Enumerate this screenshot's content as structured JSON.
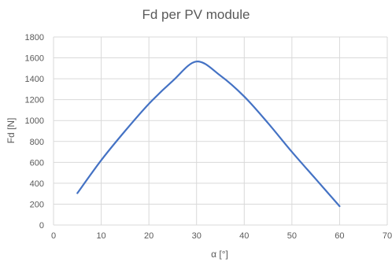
{
  "chart_data": {
    "type": "line",
    "title": "Fd per PV module",
    "xlabel": "α [°]",
    "ylabel": "Fd [N]",
    "xlim": [
      0,
      70
    ],
    "ylim": [
      0,
      1800
    ],
    "xticks": [
      0,
      10,
      20,
      30,
      40,
      50,
      60,
      70
    ],
    "yticks": [
      0,
      200,
      400,
      600,
      800,
      1000,
      1200,
      1400,
      1600,
      1800
    ],
    "grid": true,
    "legend": "none",
    "series": [
      {
        "color": "#4472c4",
        "x": [
          5,
          10,
          15,
          20,
          25,
          30,
          35,
          40,
          45,
          50,
          55,
          60
        ],
        "values": [
          305,
          620,
          900,
          1160,
          1380,
          1565,
          1430,
          1230,
          975,
          700,
          440,
          180
        ]
      }
    ]
  }
}
